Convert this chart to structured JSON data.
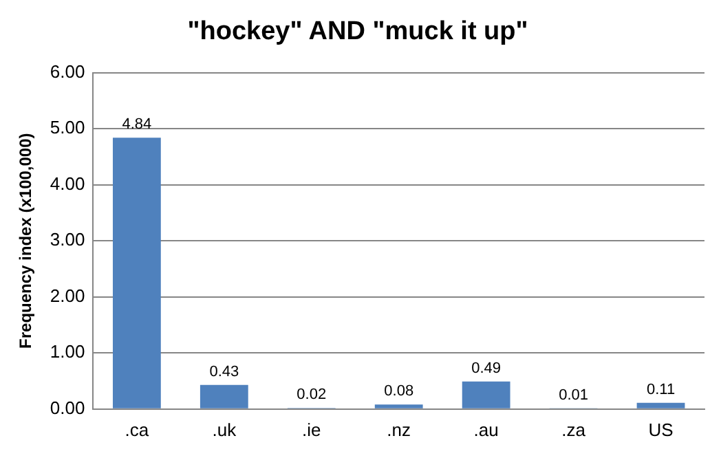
{
  "chart_data": {
    "type": "bar",
    "title": "\"hockey\" AND \"muck it up\"",
    "ylabel": "Frequency index (x100,000)",
    "categories": [
      ".ca",
      ".uk",
      ".ie",
      ".nz",
      ".au",
      ".za",
      "US"
    ],
    "values": [
      4.84,
      0.43,
      0.02,
      0.08,
      0.49,
      0.01,
      0.11
    ],
    "color": "#4f81bd",
    "ylim": [
      0,
      6
    ],
    "yticks": [
      {
        "value": 0,
        "label": "0.00"
      },
      {
        "value": 1,
        "label": "1.00"
      },
      {
        "value": 2,
        "label": "2.00"
      },
      {
        "value": 3,
        "label": "3.00"
      },
      {
        "value": 4,
        "label": "4.00"
      },
      {
        "value": 5,
        "label": "5.00"
      },
      {
        "value": 6,
        "label": "6.00"
      }
    ],
    "grid": "y",
    "legend": false,
    "data_labels": true
  }
}
